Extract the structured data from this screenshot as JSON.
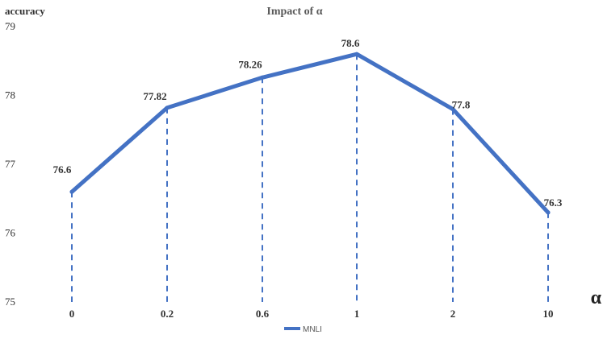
{
  "chart_data": {
    "type": "line",
    "title": "Impact of α",
    "ylabel": "accuracy",
    "xlabel": "α",
    "categories": [
      "0",
      "0.2",
      "0.6",
      "1",
      "2",
      "10"
    ],
    "series": [
      {
        "name": "MNLI",
        "values": [
          76.6,
          77.82,
          78.26,
          78.6,
          77.8,
          76.3
        ],
        "labels": [
          "76.6",
          "77.82",
          "78.26",
          "78.6",
          "77.8",
          "76.3"
        ],
        "color": "#4472C4"
      }
    ],
    "ylim": [
      75,
      79
    ],
    "yticks": [
      "75",
      "76",
      "77",
      "78",
      "79"
    ],
    "drop_lines": true,
    "grid": false,
    "legend": "bottom-center"
  }
}
